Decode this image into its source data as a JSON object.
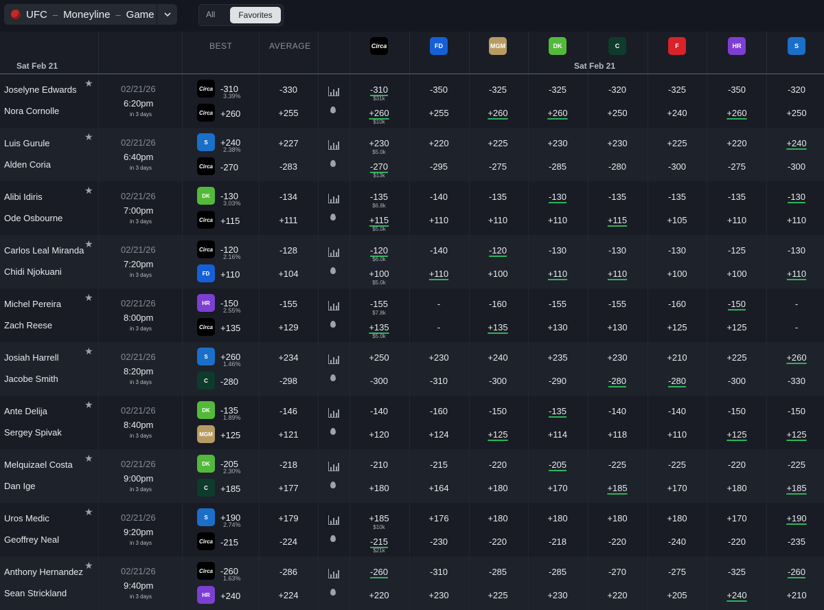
{
  "topbar": {
    "sport": "UFC",
    "market": "Moneyline",
    "period": "Game",
    "filter_all": "All",
    "filter_favorites": "Favorites",
    "active_filter": "Favorites"
  },
  "header": {
    "best_label": "BEST",
    "average_label": "AVERAGE",
    "date_left": "Sat Feb 21",
    "date_mid": "Sat Feb 21",
    "books": [
      {
        "name": "circa",
        "logo_text": "Circa",
        "color": "#000000"
      },
      {
        "name": "fanduel",
        "logo_text": "FD",
        "color": "#1560d8"
      },
      {
        "name": "betmgm",
        "logo_text": "MGM",
        "color": "#b89b62"
      },
      {
        "name": "draftkings",
        "logo_text": "DK",
        "color": "#53b93a"
      },
      {
        "name": "caesars",
        "logo_text": "C",
        "color": "#0f3b2c"
      },
      {
        "name": "fanatics",
        "logo_text": "F",
        "color": "#d9222a"
      },
      {
        "name": "hardrock",
        "logo_text": "HR",
        "color": "#7d3fd1"
      },
      {
        "name": "superbook",
        "logo_text": "S",
        "color": "#1a6fc9"
      }
    ]
  },
  "games": [
    {
      "team1": "Joselyne Edwards",
      "team2": "Nora Cornolle",
      "date": "02/21/26",
      "time": "6:20pm",
      "rel": "in 3 days",
      "best1": {
        "book": "circa",
        "odds": "-310",
        "pct": "3.39%"
      },
      "best2": {
        "book": "circa",
        "odds": "+260"
      },
      "avg1": "-330",
      "avg2": "+255",
      "odds1": [
        "-310",
        "-350",
        "-325",
        "-325",
        "-320",
        "-325",
        "-350",
        "-320"
      ],
      "odds2": [
        "+260",
        "+255",
        "+260",
        "+260",
        "+250",
        "+240",
        "+260",
        "+250"
      ],
      "best_mask1": [
        1,
        0,
        0,
        0,
        0,
        0,
        0,
        0
      ],
      "best_mask2": [
        1,
        0,
        1,
        1,
        0,
        0,
        1,
        0
      ],
      "lim1": "$31k",
      "lim2": "$10k"
    },
    {
      "team1": "Luis Gurule",
      "team2": "Alden Coria",
      "date": "02/21/26",
      "time": "6:40pm",
      "rel": "in 3 days",
      "best1": {
        "book": "superbook",
        "odds": "+240",
        "pct": "2.38%"
      },
      "best2": {
        "book": "circa",
        "odds": "-270"
      },
      "avg1": "+227",
      "avg2": "-283",
      "odds1": [
        "+230",
        "+220",
        "+225",
        "+230",
        "+230",
        "+225",
        "+220",
        "+240"
      ],
      "odds2": [
        "-270",
        "-295",
        "-275",
        "-285",
        "-280",
        "-300",
        "-275",
        "-300"
      ],
      "best_mask1": [
        0,
        0,
        0,
        0,
        0,
        0,
        0,
        1
      ],
      "best_mask2": [
        1,
        0,
        0,
        0,
        0,
        0,
        0,
        0
      ],
      "lim1": "$5.0k",
      "lim2": "$13k"
    },
    {
      "team1": "Alibi Idiris",
      "team2": "Ode Osbourne",
      "date": "02/21/26",
      "time": "7:00pm",
      "rel": "in 3 days",
      "best1": {
        "book": "draftkings",
        "odds": "-130",
        "pct": "3.03%"
      },
      "best2": {
        "book": "circa",
        "odds": "+115"
      },
      "avg1": "-134",
      "avg2": "+111",
      "odds1": [
        "-135",
        "-140",
        "-135",
        "-130",
        "-135",
        "-135",
        "-135",
        "-130"
      ],
      "odds2": [
        "+115",
        "+110",
        "+110",
        "+110",
        "+115",
        "+105",
        "+110",
        "+110"
      ],
      "best_mask1": [
        0,
        0,
        0,
        1,
        0,
        0,
        0,
        1
      ],
      "best_mask2": [
        1,
        0,
        0,
        0,
        1,
        0,
        0,
        0
      ],
      "lim1": "$6.8k",
      "lim2": "$5.0k"
    },
    {
      "team1": "Carlos Leal Miranda",
      "team2": "Chidi Njokuani",
      "date": "02/21/26",
      "time": "7:20pm",
      "rel": "in 3 days",
      "best1": {
        "book": "circa",
        "odds": "-120",
        "pct": "2.16%"
      },
      "best2": {
        "book": "fanduel",
        "odds": "+110"
      },
      "avg1": "-128",
      "avg2": "+104",
      "odds1": [
        "-120",
        "-140",
        "-120",
        "-130",
        "-130",
        "-130",
        "-125",
        "-130"
      ],
      "odds2": [
        "+100",
        "+110",
        "+100",
        "+110",
        "+110",
        "+100",
        "+100",
        "+110"
      ],
      "best_mask1": [
        1,
        0,
        1,
        0,
        0,
        0,
        0,
        0
      ],
      "best_mask2": [
        0,
        1,
        0,
        1,
        1,
        0,
        0,
        1
      ],
      "lim1": "$6.0k",
      "lim2": "$5.0k"
    },
    {
      "team1": "Michel Pereira",
      "team2": "Zach Reese",
      "date": "02/21/26",
      "time": "8:00pm",
      "rel": "in 3 days",
      "best1": {
        "book": "hardrock",
        "odds": "-150",
        "pct": "2.55%"
      },
      "best2": {
        "book": "circa",
        "odds": "+135"
      },
      "avg1": "-155",
      "avg2": "+129",
      "odds1": [
        "-155",
        "-",
        "-160",
        "-155",
        "-155",
        "-160",
        "-150",
        "-"
      ],
      "odds2": [
        "+135",
        "-",
        "+135",
        "+130",
        "+130",
        "+125",
        "+125",
        "-"
      ],
      "best_mask1": [
        0,
        0,
        0,
        0,
        0,
        0,
        1,
        0
      ],
      "best_mask2": [
        1,
        0,
        1,
        0,
        0,
        0,
        0,
        0
      ],
      "lim1": "$7.8k",
      "lim2": "$5.0k"
    },
    {
      "team1": "Josiah Harrell",
      "team2": "Jacobe Smith",
      "date": "02/21/26",
      "time": "8:20pm",
      "rel": "in 3 days",
      "best1": {
        "book": "superbook",
        "odds": "+260",
        "pct": "1.46%"
      },
      "best2": {
        "book": "caesars",
        "odds": "-280"
      },
      "avg1": "+234",
      "avg2": "-298",
      "odds1": [
        "+250",
        "+230",
        "+240",
        "+235",
        "+230",
        "+210",
        "+225",
        "+260"
      ],
      "odds2": [
        "-300",
        "-310",
        "-300",
        "-290",
        "-280",
        "-280",
        "-300",
        "-330"
      ],
      "best_mask1": [
        0,
        0,
        0,
        0,
        0,
        0,
        0,
        1
      ],
      "best_mask2": [
        0,
        0,
        0,
        0,
        1,
        1,
        0,
        0
      ],
      "lim1": "",
      "lim2": ""
    },
    {
      "team1": "Ante Delija",
      "team2": "Sergey Spivak",
      "date": "02/21/26",
      "time": "8:40pm",
      "rel": "in 3 days",
      "best1": {
        "book": "draftkings",
        "odds": "-135",
        "pct": "1.89%"
      },
      "best2": {
        "book": "betmgm",
        "odds": "+125"
      },
      "avg1": "-146",
      "avg2": "+121",
      "odds1": [
        "-140",
        "-160",
        "-150",
        "-135",
        "-140",
        "-140",
        "-150",
        "-150"
      ],
      "odds2": [
        "+120",
        "+124",
        "+125",
        "+114",
        "+118",
        "+110",
        "+125",
        "+125"
      ],
      "best_mask1": [
        0,
        0,
        0,
        1,
        0,
        0,
        0,
        0
      ],
      "best_mask2": [
        0,
        0,
        1,
        0,
        0,
        0,
        1,
        1
      ],
      "lim1": "",
      "lim2": ""
    },
    {
      "team1": "Melquizael Costa",
      "team2": "Dan Ige",
      "date": "02/21/26",
      "time": "9:00pm",
      "rel": "in 3 days",
      "best1": {
        "book": "draftkings",
        "odds": "-205",
        "pct": "2.30%"
      },
      "best2": {
        "book": "caesars",
        "odds": "+185"
      },
      "avg1": "-218",
      "avg2": "+177",
      "odds1": [
        "-210",
        "-215",
        "-220",
        "-205",
        "-225",
        "-225",
        "-220",
        "-225"
      ],
      "odds2": [
        "+180",
        "+164",
        "+180",
        "+170",
        "+185",
        "+170",
        "+180",
        "+185"
      ],
      "best_mask1": [
        0,
        0,
        0,
        1,
        0,
        0,
        0,
        0
      ],
      "best_mask2": [
        0,
        0,
        0,
        0,
        1,
        0,
        0,
        1
      ],
      "lim1": "",
      "lim2": ""
    },
    {
      "team1": "Uros Medic",
      "team2": "Geoffrey Neal",
      "date": "02/21/26",
      "time": "9:20pm",
      "rel": "in 3 days",
      "best1": {
        "book": "superbook",
        "odds": "+190",
        "pct": "2.74%"
      },
      "best2": {
        "book": "circa",
        "odds": "-215"
      },
      "avg1": "+179",
      "avg2": "-224",
      "odds1": [
        "+185",
        "+176",
        "+180",
        "+180",
        "+180",
        "+180",
        "+170",
        "+190"
      ],
      "odds2": [
        "-215",
        "-230",
        "-220",
        "-218",
        "-220",
        "-240",
        "-220",
        "-235"
      ],
      "best_mask1": [
        0,
        0,
        0,
        0,
        0,
        0,
        0,
        1
      ],
      "best_mask2": [
        1,
        0,
        0,
        0,
        0,
        0,
        0,
        0
      ],
      "lim1": "$10k",
      "lim2": "$21k"
    },
    {
      "team1": "Anthony Hernandez",
      "team2": "Sean Strickland",
      "date": "02/21/26",
      "time": "9:40pm",
      "rel": "in 3 days",
      "best1": {
        "book": "circa",
        "odds": "-260",
        "pct": "1.63%"
      },
      "best2": {
        "book": "hardrock",
        "odds": "+240"
      },
      "avg1": "-286",
      "avg2": "+224",
      "odds1": [
        "-260",
        "-310",
        "-285",
        "-285",
        "-270",
        "-275",
        "-325",
        "-260"
      ],
      "odds2": [
        "+220",
        "+230",
        "+225",
        "+230",
        "+220",
        "+205",
        "+240",
        "+210"
      ],
      "best_mask1": [
        1,
        0,
        0,
        0,
        0,
        0,
        0,
        1
      ],
      "best_mask2": [
        0,
        0,
        0,
        0,
        0,
        0,
        1,
        0
      ],
      "lim1": "",
      "lim2": ""
    }
  ]
}
